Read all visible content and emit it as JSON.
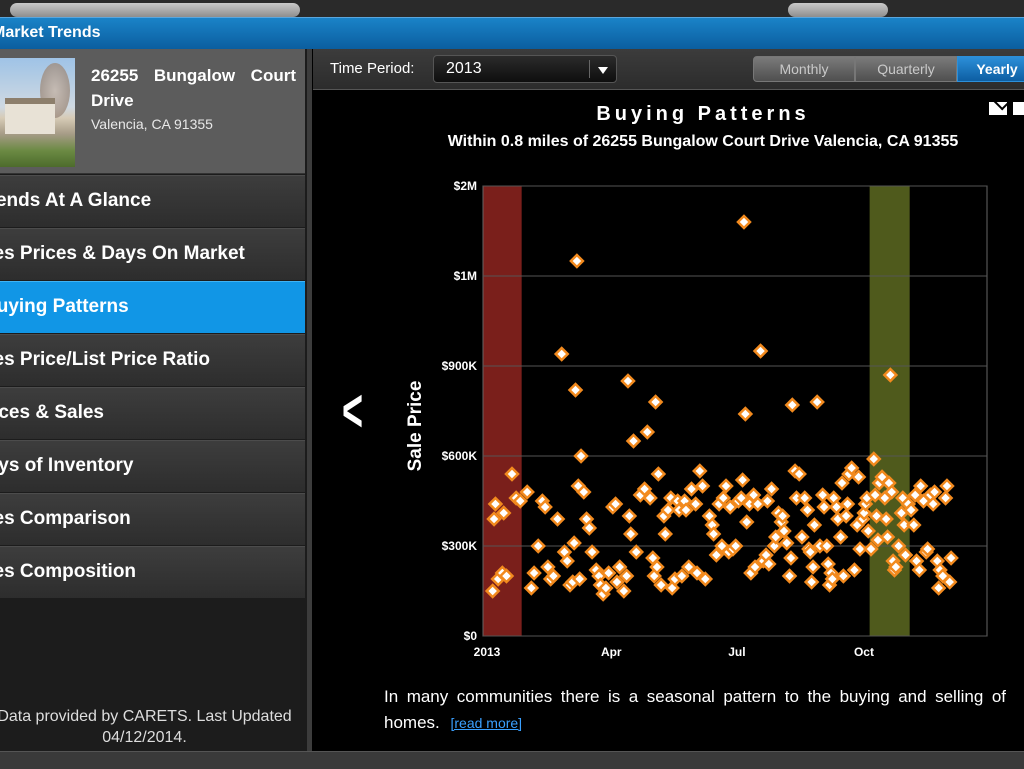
{
  "window": {
    "title": "Market Trends"
  },
  "property": {
    "address_line1": "26255 Bungalow Court Drive",
    "address_line2": "Valencia, CA 91355"
  },
  "menu": [
    {
      "label": "Trends At A Glance",
      "active": false
    },
    {
      "label": "Sales Prices & Days On Market",
      "active": false
    },
    {
      "label": "Buying Patterns",
      "active": true
    },
    {
      "label": "Sales Price/List Price Ratio",
      "active": false
    },
    {
      "label": "Prices & Sales",
      "active": false
    },
    {
      "label": "Days of Inventory",
      "active": false
    },
    {
      "label": "Sales Comparison",
      "active": false
    },
    {
      "label": "Sales Composition",
      "active": false
    }
  ],
  "footnote": "Data provided by CARETS.  Last Updated 04/12/2014.",
  "toolbar": {
    "time_period_label": "Time Period:",
    "time_period_value": "2013",
    "segments": [
      {
        "label": "Monthly",
        "selected": false
      },
      {
        "label": "Quarterly",
        "selected": false
      },
      {
        "label": "Yearly",
        "selected": true
      }
    ]
  },
  "description": {
    "text": "In many communities there is a seasonal pattern to the buying and selling of homes.",
    "link": "[read more]"
  },
  "colors": {
    "accent": "#1196e6",
    "point_fill": "#ffffff",
    "point_stroke": "#f28a1e",
    "band_winter": "#7a1f1b",
    "band_fall": "#4f5a1c"
  },
  "chart_data": {
    "type": "scatter",
    "title": "Buying Patterns",
    "subtitle": "Within 0.8 miles of 26255 Bungalow Court Drive Valencia, CA 91355",
    "ylabel": "Sale Price",
    "x_range": [
      1,
      366
    ],
    "y_tick_positions": [
      0,
      300000,
      600000,
      900000,
      1200000,
      1500000
    ],
    "y_tick_labels": [
      "$0",
      "$300K",
      "$600K",
      "$900K",
      "$1M",
      "$2M"
    ],
    "x_ticks": [
      {
        "day": 1,
        "label": "2013"
      },
      {
        "day": 91,
        "label": "Apr"
      },
      {
        "day": 182,
        "label": "Jul"
      },
      {
        "day": 274,
        "label": "Oct"
      }
    ],
    "highlight_bands": [
      {
        "from_day": 1,
        "to_day": 29,
        "color": "#7a1f1b"
      },
      {
        "from_day": 281,
        "to_day": 310,
        "color": "#4f5a1c"
      }
    ],
    "grid": true,
    "points": [
      [
        8,
        150000
      ],
      [
        12,
        190000
      ],
      [
        15,
        210000
      ],
      [
        18,
        200000
      ],
      [
        22,
        540000
      ],
      [
        10,
        440000
      ],
      [
        16,
        410000
      ],
      [
        9,
        390000
      ],
      [
        25,
        460000
      ],
      [
        28,
        450000
      ],
      [
        33,
        480000
      ],
      [
        36,
        160000
      ],
      [
        38,
        210000
      ],
      [
        41,
        300000
      ],
      [
        44,
        450000
      ],
      [
        46,
        430000
      ],
      [
        48,
        230000
      ],
      [
        50,
        190000
      ],
      [
        52,
        200000
      ],
      [
        55,
        390000
      ],
      [
        58,
        940000
      ],
      [
        60,
        280000
      ],
      [
        62,
        250000
      ],
      [
        64,
        170000
      ],
      [
        66,
        180000
      ],
      [
        67,
        310000
      ],
      [
        68,
        820000
      ],
      [
        69,
        1250000
      ],
      [
        70,
        500000
      ],
      [
        71,
        190000
      ],
      [
        72,
        600000
      ],
      [
        74,
        480000
      ],
      [
        76,
        390000
      ],
      [
        78,
        360000
      ],
      [
        80,
        280000
      ],
      [
        83,
        220000
      ],
      [
        85,
        200000
      ],
      [
        86,
        170000
      ],
      [
        88,
        140000
      ],
      [
        90,
        160000
      ],
      [
        92,
        210000
      ],
      [
        95,
        430000
      ],
      [
        97,
        440000
      ],
      [
        98,
        180000
      ],
      [
        100,
        230000
      ],
      [
        103,
        150000
      ],
      [
        105,
        200000
      ],
      [
        106,
        850000
      ],
      [
        107,
        400000
      ],
      [
        108,
        340000
      ],
      [
        110,
        650000
      ],
      [
        112,
        280000
      ],
      [
        115,
        470000
      ],
      [
        118,
        490000
      ],
      [
        120,
        680000
      ],
      [
        122,
        460000
      ],
      [
        124,
        260000
      ],
      [
        125,
        200000
      ],
      [
        126,
        780000
      ],
      [
        127,
        230000
      ],
      [
        128,
        540000
      ],
      [
        130,
        170000
      ],
      [
        132,
        400000
      ],
      [
        133,
        340000
      ],
      [
        135,
        420000
      ],
      [
        137,
        460000
      ],
      [
        138,
        160000
      ],
      [
        140,
        190000
      ],
      [
        142,
        450000
      ],
      [
        143,
        420000
      ],
      [
        145,
        200000
      ],
      [
        147,
        450000
      ],
      [
        148,
        420000
      ],
      [
        150,
        230000
      ],
      [
        152,
        490000
      ],
      [
        155,
        440000
      ],
      [
        156,
        210000
      ],
      [
        158,
        550000
      ],
      [
        160,
        500000
      ],
      [
        162,
        190000
      ],
      [
        165,
        400000
      ],
      [
        167,
        370000
      ],
      [
        168,
        340000
      ],
      [
        170,
        270000
      ],
      [
        172,
        440000
      ],
      [
        174,
        300000
      ],
      [
        175,
        460000
      ],
      [
        177,
        500000
      ],
      [
        179,
        280000
      ],
      [
        180,
        430000
      ],
      [
        182,
        290000
      ],
      [
        184,
        300000
      ],
      [
        186,
        450000
      ],
      [
        188,
        460000
      ],
      [
        189,
        520000
      ],
      [
        190,
        1380000
      ],
      [
        191,
        740000
      ],
      [
        192,
        380000
      ],
      [
        194,
        440000
      ],
      [
        195,
        210000
      ],
      [
        197,
        470000
      ],
      [
        198,
        230000
      ],
      [
        200,
        440000
      ],
      [
        202,
        950000
      ],
      [
        204,
        250000
      ],
      [
        206,
        270000
      ],
      [
        207,
        450000
      ],
      [
        208,
        240000
      ],
      [
        210,
        490000
      ],
      [
        212,
        300000
      ],
      [
        213,
        330000
      ],
      [
        215,
        410000
      ],
      [
        217,
        380000
      ],
      [
        218,
        400000
      ],
      [
        219,
        350000
      ],
      [
        221,
        310000
      ],
      [
        223,
        200000
      ],
      [
        224,
        260000
      ],
      [
        225,
        770000
      ],
      [
        227,
        550000
      ],
      [
        228,
        460000
      ],
      [
        230,
        540000
      ],
      [
        232,
        330000
      ],
      [
        234,
        460000
      ],
      [
        236,
        420000
      ],
      [
        237,
        290000
      ],
      [
        238,
        280000
      ],
      [
        239,
        180000
      ],
      [
        240,
        230000
      ],
      [
        241,
        370000
      ],
      [
        243,
        780000
      ],
      [
        245,
        300000
      ],
      [
        247,
        470000
      ],
      [
        248,
        430000
      ],
      [
        250,
        300000
      ],
      [
        251,
        240000
      ],
      [
        252,
        170000
      ],
      [
        253,
        210000
      ],
      [
        254,
        190000
      ],
      [
        255,
        460000
      ],
      [
        257,
        430000
      ],
      [
        258,
        390000
      ],
      [
        260,
        330000
      ],
      [
        261,
        510000
      ],
      [
        262,
        200000
      ],
      [
        264,
        400000
      ],
      [
        265,
        440000
      ],
      [
        266,
        540000
      ],
      [
        268,
        560000
      ],
      [
        270,
        220000
      ],
      [
        272,
        370000
      ],
      [
        273,
        530000
      ],
      [
        274,
        290000
      ],
      [
        276,
        390000
      ],
      [
        277,
        410000
      ],
      [
        278,
        440000
      ],
      [
        279,
        460000
      ],
      [
        280,
        350000
      ],
      [
        282,
        290000
      ],
      [
        284,
        590000
      ],
      [
        285,
        470000
      ],
      [
        286,
        400000
      ],
      [
        287,
        320000
      ],
      [
        288,
        510000
      ],
      [
        290,
        530000
      ],
      [
        292,
        460000
      ],
      [
        293,
        390000
      ],
      [
        294,
        330000
      ],
      [
        295,
        510000
      ],
      [
        296,
        870000
      ],
      [
        297,
        480000
      ],
      [
        298,
        250000
      ],
      [
        299,
        220000
      ],
      [
        300,
        230000
      ],
      [
        302,
        300000
      ],
      [
        304,
        410000
      ],
      [
        305,
        460000
      ],
      [
        306,
        370000
      ],
      [
        307,
        270000
      ],
      [
        309,
        440000
      ],
      [
        311,
        420000
      ],
      [
        313,
        370000
      ],
      [
        314,
        470000
      ],
      [
        315,
        250000
      ],
      [
        317,
        220000
      ],
      [
        318,
        500000
      ],
      [
        320,
        450000
      ],
      [
        322,
        280000
      ],
      [
        323,
        290000
      ],
      [
        325,
        470000
      ],
      [
        327,
        440000
      ],
      [
        328,
        480000
      ],
      [
        330,
        250000
      ],
      [
        331,
        160000
      ],
      [
        332,
        220000
      ],
      [
        334,
        200000
      ],
      [
        336,
        460000
      ],
      [
        337,
        500000
      ],
      [
        339,
        180000
      ],
      [
        340,
        260000
      ]
    ]
  }
}
